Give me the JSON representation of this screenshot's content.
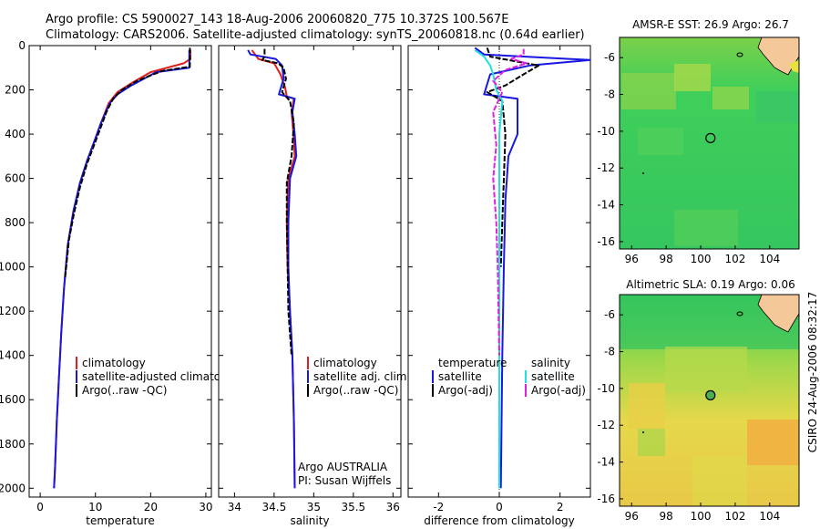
{
  "header": {
    "line1": "Argo profile: CS 5900027_143 18-Aug-2006 20060820_775 10.372S 100.567E",
    "line2": "Climatology: CARS2006. Satellite-adjusted climatology: synTS_20060818.nc (0.64d earlier)"
  },
  "side_stamp": "CSIRO 24-Aug-2006 08:32:17",
  "colors": {
    "red": "#e02020",
    "blue": "#1818e0",
    "black": "#000000",
    "cyan": "#20e0e0",
    "magenta": "#e020e0",
    "sea_green": "#2fcf6a",
    "sea_yellow": "#d8e24a",
    "sea_orange": "#f0b040",
    "land": "#f5c89a"
  },
  "chart_data": [
    {
      "id": "temperature",
      "type": "line",
      "xlabel": "temperature",
      "xlim": [
        -2,
        31
      ],
      "xticks": [
        0,
        10,
        20,
        30
      ],
      "ylim": [
        2040,
        0
      ],
      "yticks": [
        0,
        200,
        400,
        600,
        800,
        1000,
        1200,
        1400,
        1600,
        1800,
        2000
      ],
      "series": [
        {
          "name": "climatology",
          "color": "#e02020",
          "points": [
            [
              27.2,
              20
            ],
            [
              27.2,
              60
            ],
            [
              26.0,
              80
            ],
            [
              20.0,
              120
            ],
            [
              16.5,
              170
            ],
            [
              14.0,
              210
            ],
            [
              12.4,
              260
            ],
            [
              11.0,
              350
            ],
            [
              10.0,
              420
            ],
            [
              8.5,
              520
            ],
            [
              7.2,
              620
            ],
            [
              6.0,
              750
            ],
            [
              5.0,
              900
            ],
            [
              4.3,
              1100
            ],
            [
              3.8,
              1300
            ],
            [
              3.4,
              1500
            ],
            [
              3.0,
              1700
            ],
            [
              2.7,
              1900
            ],
            [
              2.5,
              2000
            ]
          ]
        },
        {
          "name": "satellite-adjusted climatology",
          "color": "#1818e0",
          "points": [
            [
              27.0,
              20
            ],
            [
              27.0,
              100
            ],
            [
              21.0,
              120
            ],
            [
              16.5,
              180
            ],
            [
              14.0,
              220
            ],
            [
              12.6,
              260
            ],
            [
              11.0,
              350
            ],
            [
              10.0,
              420
            ],
            [
              8.5,
              520
            ],
            [
              7.2,
              620
            ],
            [
              6.0,
              750
            ],
            [
              5.0,
              900
            ],
            [
              4.3,
              1100
            ],
            [
              3.8,
              1300
            ],
            [
              3.4,
              1500
            ],
            [
              3.0,
              1700
            ],
            [
              2.7,
              1900
            ],
            [
              2.5,
              2000
            ]
          ]
        },
        {
          "name": "Argo(..raw -QC)",
          "color": "#000000",
          "points": [
            [
              27.1,
              10
            ],
            [
              27.1,
              95
            ],
            [
              22.0,
              115
            ],
            [
              17.5,
              160
            ],
            [
              14.8,
              200
            ],
            [
              13.2,
              240
            ],
            [
              12.0,
              300
            ],
            [
              10.8,
              380
            ],
            [
              9.6,
              460
            ],
            [
              8.4,
              540
            ],
            [
              7.2,
              640
            ],
            [
              6.1,
              760
            ],
            [
              5.2,
              880
            ],
            [
              4.5,
              1050
            ]
          ]
        }
      ],
      "legend": [
        "climatology",
        "satellite-adjusted climatology",
        "Argo(..raw -QC)"
      ]
    },
    {
      "id": "salinity",
      "type": "line",
      "xlabel": "salinity",
      "xlim": [
        33.8,
        36.1
      ],
      "xticks": [
        34,
        34.5,
        35,
        35.5,
        36
      ],
      "xticklabels": [
        "34",
        "34.5",
        "35",
        "35.5",
        "36"
      ],
      "ylim": [
        2040,
        0
      ],
      "series": [
        {
          "name": "climatology",
          "color": "#e02020",
          "points": [
            [
              34.22,
              20
            ],
            [
              34.3,
              60
            ],
            [
              34.5,
              80
            ],
            [
              34.58,
              130
            ],
            [
              34.64,
              190
            ],
            [
              34.66,
              230
            ],
            [
              34.75,
              240
            ],
            [
              34.72,
              300
            ],
            [
              34.74,
              380
            ],
            [
              34.76,
              500
            ],
            [
              34.68,
              600
            ],
            [
              34.66,
              800
            ],
            [
              34.67,
              1000
            ],
            [
              34.7,
              1200
            ],
            [
              34.73,
              1400
            ],
            [
              34.75,
              1700
            ],
            [
              34.76,
              2000
            ]
          ]
        },
        {
          "name": "satellite adj. clim.",
          "color": "#1818e0",
          "points": [
            [
              34.17,
              20
            ],
            [
              34.2,
              40
            ],
            [
              34.52,
              60
            ],
            [
              34.6,
              90
            ],
            [
              34.62,
              150
            ],
            [
              34.56,
              220
            ],
            [
              34.76,
              240
            ],
            [
              34.73,
              300
            ],
            [
              34.76,
              400
            ],
            [
              34.78,
              500
            ],
            [
              34.7,
              600
            ],
            [
              34.68,
              800
            ],
            [
              34.68,
              1000
            ],
            [
              34.7,
              1200
            ],
            [
              34.73,
              1400
            ],
            [
              34.75,
              1700
            ],
            [
              34.76,
              2000
            ]
          ]
        },
        {
          "name": "Argo(..raw -QC)",
          "color": "#000000",
          "points": [
            [
              34.38,
              15
            ],
            [
              34.38,
              50
            ],
            [
              34.35,
              65
            ],
            [
              34.55,
              80
            ],
            [
              34.62,
              100
            ],
            [
              34.65,
              150
            ],
            [
              34.6,
              210
            ],
            [
              34.7,
              250
            ],
            [
              34.75,
              350
            ],
            [
              34.72,
              500
            ],
            [
              34.66,
              620
            ],
            [
              34.66,
              800
            ],
            [
              34.67,
              1000
            ],
            [
              34.68,
              1200
            ],
            [
              34.72,
              1400
            ]
          ]
        }
      ],
      "legend": [
        "climatology",
        "satellite adj. clim.",
        "Argo(..raw -QC)"
      ],
      "footer": [
        "Argo AUSTRALIA",
        "PI: Susan Wijffels"
      ]
    },
    {
      "id": "difference",
      "type": "line",
      "xlabel": "difference from climatology",
      "xlim": [
        -3,
        3
      ],
      "xticks": [
        -2,
        0,
        2
      ],
      "ylim": [
        2040,
        0
      ],
      "series": [
        {
          "name": "temperature satellite",
          "color": "#1818e0",
          "points": [
            [
              -0.8,
              10
            ],
            [
              -0.5,
              40
            ],
            [
              2.3,
              60
            ],
            [
              3.0,
              65
            ],
            [
              1.0,
              90
            ],
            [
              -0.3,
              130
            ],
            [
              -0.5,
              220
            ],
            [
              0.6,
              240
            ],
            [
              0.6,
              400
            ],
            [
              0.3,
              500
            ],
            [
              0.2,
              700
            ],
            [
              0.15,
              1000
            ],
            [
              0.1,
              1400
            ],
            [
              0.05,
              2000
            ]
          ]
        },
        {
          "name": "temperature Argo(-adj)",
          "color": "#000000",
          "points": [
            [
              -0.4,
              10
            ],
            [
              -0.3,
              50
            ],
            [
              0.5,
              70
            ],
            [
              1.3,
              90
            ],
            [
              0.8,
              130
            ],
            [
              0.2,
              180
            ],
            [
              -0.4,
              210
            ],
            [
              0.1,
              250
            ],
            [
              0.2,
              400
            ],
            [
              0.15,
              600
            ],
            [
              0.1,
              800
            ],
            [
              0.05,
              1000
            ]
          ]
        },
        {
          "name": "salinity satellite",
          "color": "#20e0e0",
          "points": [
            [
              -0.8,
              20
            ],
            [
              -0.5,
              50
            ],
            [
              -0.3,
              90
            ],
            [
              -0.2,
              130
            ],
            [
              -0.1,
              200
            ],
            [
              0.1,
              250
            ],
            [
              0.0,
              400
            ],
            [
              0.0,
              800
            ],
            [
              0.0,
              1400
            ],
            [
              0.0,
              2000
            ]
          ]
        },
        {
          "name": "salinity Argo(-adj)",
          "color": "#e020e0",
          "points": [
            [
              0.8,
              15
            ],
            [
              0.8,
              40
            ],
            [
              0.4,
              60
            ],
            [
              0.9,
              80
            ],
            [
              0.2,
              110
            ],
            [
              -0.2,
              160
            ],
            [
              0.1,
              210
            ],
            [
              -0.2,
              300
            ],
            [
              -0.1,
              450
            ],
            [
              -0.2,
              600
            ],
            [
              -0.1,
              800
            ],
            [
              -0.05,
              1000
            ],
            [
              0.0,
              1400
            ]
          ]
        }
      ],
      "legend_headers": [
        "temperature",
        "salinity"
      ],
      "legend": [
        "satellite",
        "Argo(-adj)",
        "satellite",
        "Argo(-adj)"
      ]
    },
    {
      "id": "sst_map",
      "type": "heatmap",
      "title": "AMSR-E SST: 26.9 Argo: 26.7",
      "xlim": [
        95.3,
        105.7
      ],
      "ylim": [
        -16.4,
        -4.9
      ],
      "xticks": [
        96,
        98,
        100,
        102,
        104
      ],
      "yticks": [
        -6,
        -8,
        -10,
        -12,
        -14,
        -16
      ],
      "argo_position": [
        100.567,
        -10.372
      ],
      "field": "mostly green with yellow-green warm patches in the north"
    },
    {
      "id": "sla_map",
      "type": "heatmap",
      "title": "Altimetric SLA: 0.19 Argo: 0.06",
      "xlim": [
        95.3,
        105.7
      ],
      "ylim": [
        -16.4,
        -4.9
      ],
      "xticks": [
        96,
        98,
        100,
        102,
        104
      ],
      "yticks": [
        -6,
        -8,
        -10,
        -12,
        -14,
        -16
      ],
      "argo_position": [
        100.567,
        -10.372
      ],
      "field": "green north, yellow/orange south"
    }
  ]
}
